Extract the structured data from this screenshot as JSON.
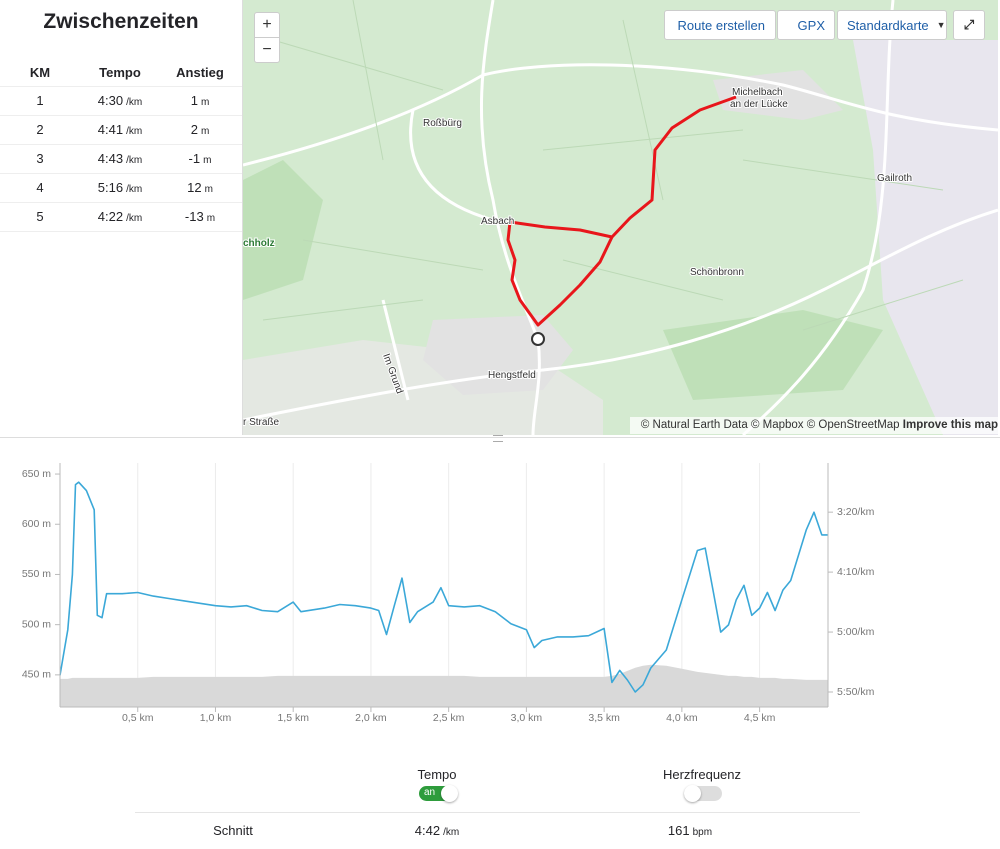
{
  "splits": {
    "title": "Zwischenzeiten",
    "columns": [
      "KM",
      "Tempo",
      "Anstieg"
    ],
    "rows": [
      {
        "km": 1,
        "tempo": "4:30",
        "tempo_unit": "/km",
        "anstieg": 1,
        "anstieg_unit": "m"
      },
      {
        "km": 2,
        "tempo": "4:41",
        "tempo_unit": "/km",
        "anstieg": 2,
        "anstieg_unit": "m"
      },
      {
        "km": 3,
        "tempo": "4:43",
        "tempo_unit": "/km",
        "anstieg": -1,
        "anstieg_unit": "m"
      },
      {
        "km": 4,
        "tempo": "5:16",
        "tempo_unit": "/km",
        "anstieg": 12,
        "anstieg_unit": "m"
      },
      {
        "km": 5,
        "tempo": "4:22",
        "tempo_unit": "/km",
        "anstieg": -13,
        "anstieg_unit": "m"
      }
    ]
  },
  "map": {
    "controls": {
      "zoom_in": "+",
      "zoom_out": "−",
      "route": "Route erstellen",
      "gpx": "GPX",
      "style": "Standardkarte"
    },
    "places": [
      "Roßbürg",
      "Asbach",
      "Michelbach",
      "an der Lücke",
      "Gailroth",
      "Schönbronn",
      "Hengstfeld",
      "Im Grund",
      "r Straße",
      "chholz"
    ],
    "attribution": "© Natural Earth Data © Mapbox © OpenStreetMap",
    "improve": "Improve this map"
  },
  "chart_data": {
    "type": "line",
    "x": [
      0,
      0.05,
      0.08,
      0.1,
      0.12,
      0.17,
      0.22,
      0.24,
      0.27,
      0.3,
      0.4,
      0.5,
      0.6,
      0.7,
      0.8,
      0.9,
      1.0,
      1.1,
      1.2,
      1.3,
      1.4,
      1.5,
      1.55,
      1.7,
      1.8,
      1.9,
      2.0,
      2.05,
      2.1,
      2.15,
      2.2,
      2.25,
      2.3,
      2.4,
      2.45,
      2.5,
      2.6,
      2.7,
      2.8,
      2.9,
      3.0,
      3.05,
      3.1,
      3.2,
      3.3,
      3.4,
      3.5,
      3.55,
      3.6,
      3.65,
      3.7,
      3.75,
      3.8,
      3.9,
      4.0,
      4.1,
      4.15,
      4.2,
      4.25,
      4.3,
      4.35,
      4.4,
      4.45,
      4.5,
      4.55,
      4.6,
      4.65,
      4.7,
      4.8,
      4.85,
      4.9,
      4.94
    ],
    "series": [
      {
        "color": "#d9d9d9",
        "area": true,
        "values": [
          446,
          446,
          447,
          447,
          447,
          447,
          447,
          447,
          447,
          447,
          447,
          447,
          448,
          448,
          448,
          448,
          448,
          448,
          448,
          448,
          449,
          449,
          449,
          449,
          449,
          449,
          449,
          449,
          449,
          449,
          449,
          449,
          449,
          449,
          449,
          449,
          449,
          448,
          448,
          448,
          448,
          448,
          448,
          448,
          448,
          448,
          448,
          449,
          451,
          454,
          457,
          459,
          460,
          459,
          456,
          453,
          452,
          451,
          450,
          449,
          449,
          448,
          448,
          447,
          447,
          447,
          446,
          446,
          445,
          445,
          445,
          445
        ]
      },
      {
        "color": "#3ba8d8",
        "axis": "y2",
        "values": [
          336,
          298,
          252,
          177,
          175,
          182,
          198,
          286,
          288,
          268,
          268,
          267,
          270,
          272,
          274,
          276,
          278,
          279,
          278,
          282,
          283,
          275,
          283,
          280,
          277,
          278,
          280,
          282,
          302,
          278,
          255,
          292,
          283,
          275,
          263,
          278,
          279,
          278,
          283,
          293,
          298,
          313,
          307,
          304,
          304,
          303,
          297,
          342,
          332,
          340,
          350,
          344,
          330,
          315,
          273,
          232,
          230,
          265,
          300,
          294,
          273,
          261,
          286,
          280,
          267,
          282,
          265,
          257,
          215,
          200,
          219,
          219
        ]
      }
    ],
    "xlim": [
      0,
      4.94
    ],
    "xticks": [
      {
        "value": 0.5,
        "label": "0,5 km"
      },
      {
        "value": 1.0,
        "label": "1,0 km"
      },
      {
        "value": 1.5,
        "label": "1,5 km"
      },
      {
        "value": 2.0,
        "label": "2,0 km"
      },
      {
        "value": 2.5,
        "label": "2,5 km"
      },
      {
        "value": 3.0,
        "label": "3,0 km"
      },
      {
        "value": 3.5,
        "label": "3,5 km"
      },
      {
        "value": 4.0,
        "label": "4,0 km"
      },
      {
        "value": 4.5,
        "label": "4,5 km"
      }
    ],
    "ylim": [
      418,
      661
    ],
    "yticks": [
      {
        "value": 450,
        "label": "450 m"
      },
      {
        "value": 500,
        "label": "500 m"
      },
      {
        "value": 550,
        "label": "550 m"
      },
      {
        "value": 600,
        "label": "600 m"
      },
      {
        "value": 650,
        "label": "650 m"
      }
    ],
    "y2lim": [
      362.5,
      159
    ],
    "y2ticks": [
      {
        "value": 200,
        "label": "3:20/km"
      },
      {
        "value": 250,
        "label": "4:10/km"
      },
      {
        "value": 300,
        "label": "5:00/km"
      },
      {
        "value": 350,
        "label": "5:50/km"
      }
    ],
    "grid": true
  },
  "toggles": [
    {
      "label": "Tempo",
      "state": "an",
      "on": true
    },
    {
      "label": "Herzfrequenz",
      "on": false
    }
  ],
  "summary": {
    "label": "Schnitt",
    "pace": "4:42",
    "pace_unit": "/km",
    "hr": "161",
    "hr_unit": "bpm"
  }
}
